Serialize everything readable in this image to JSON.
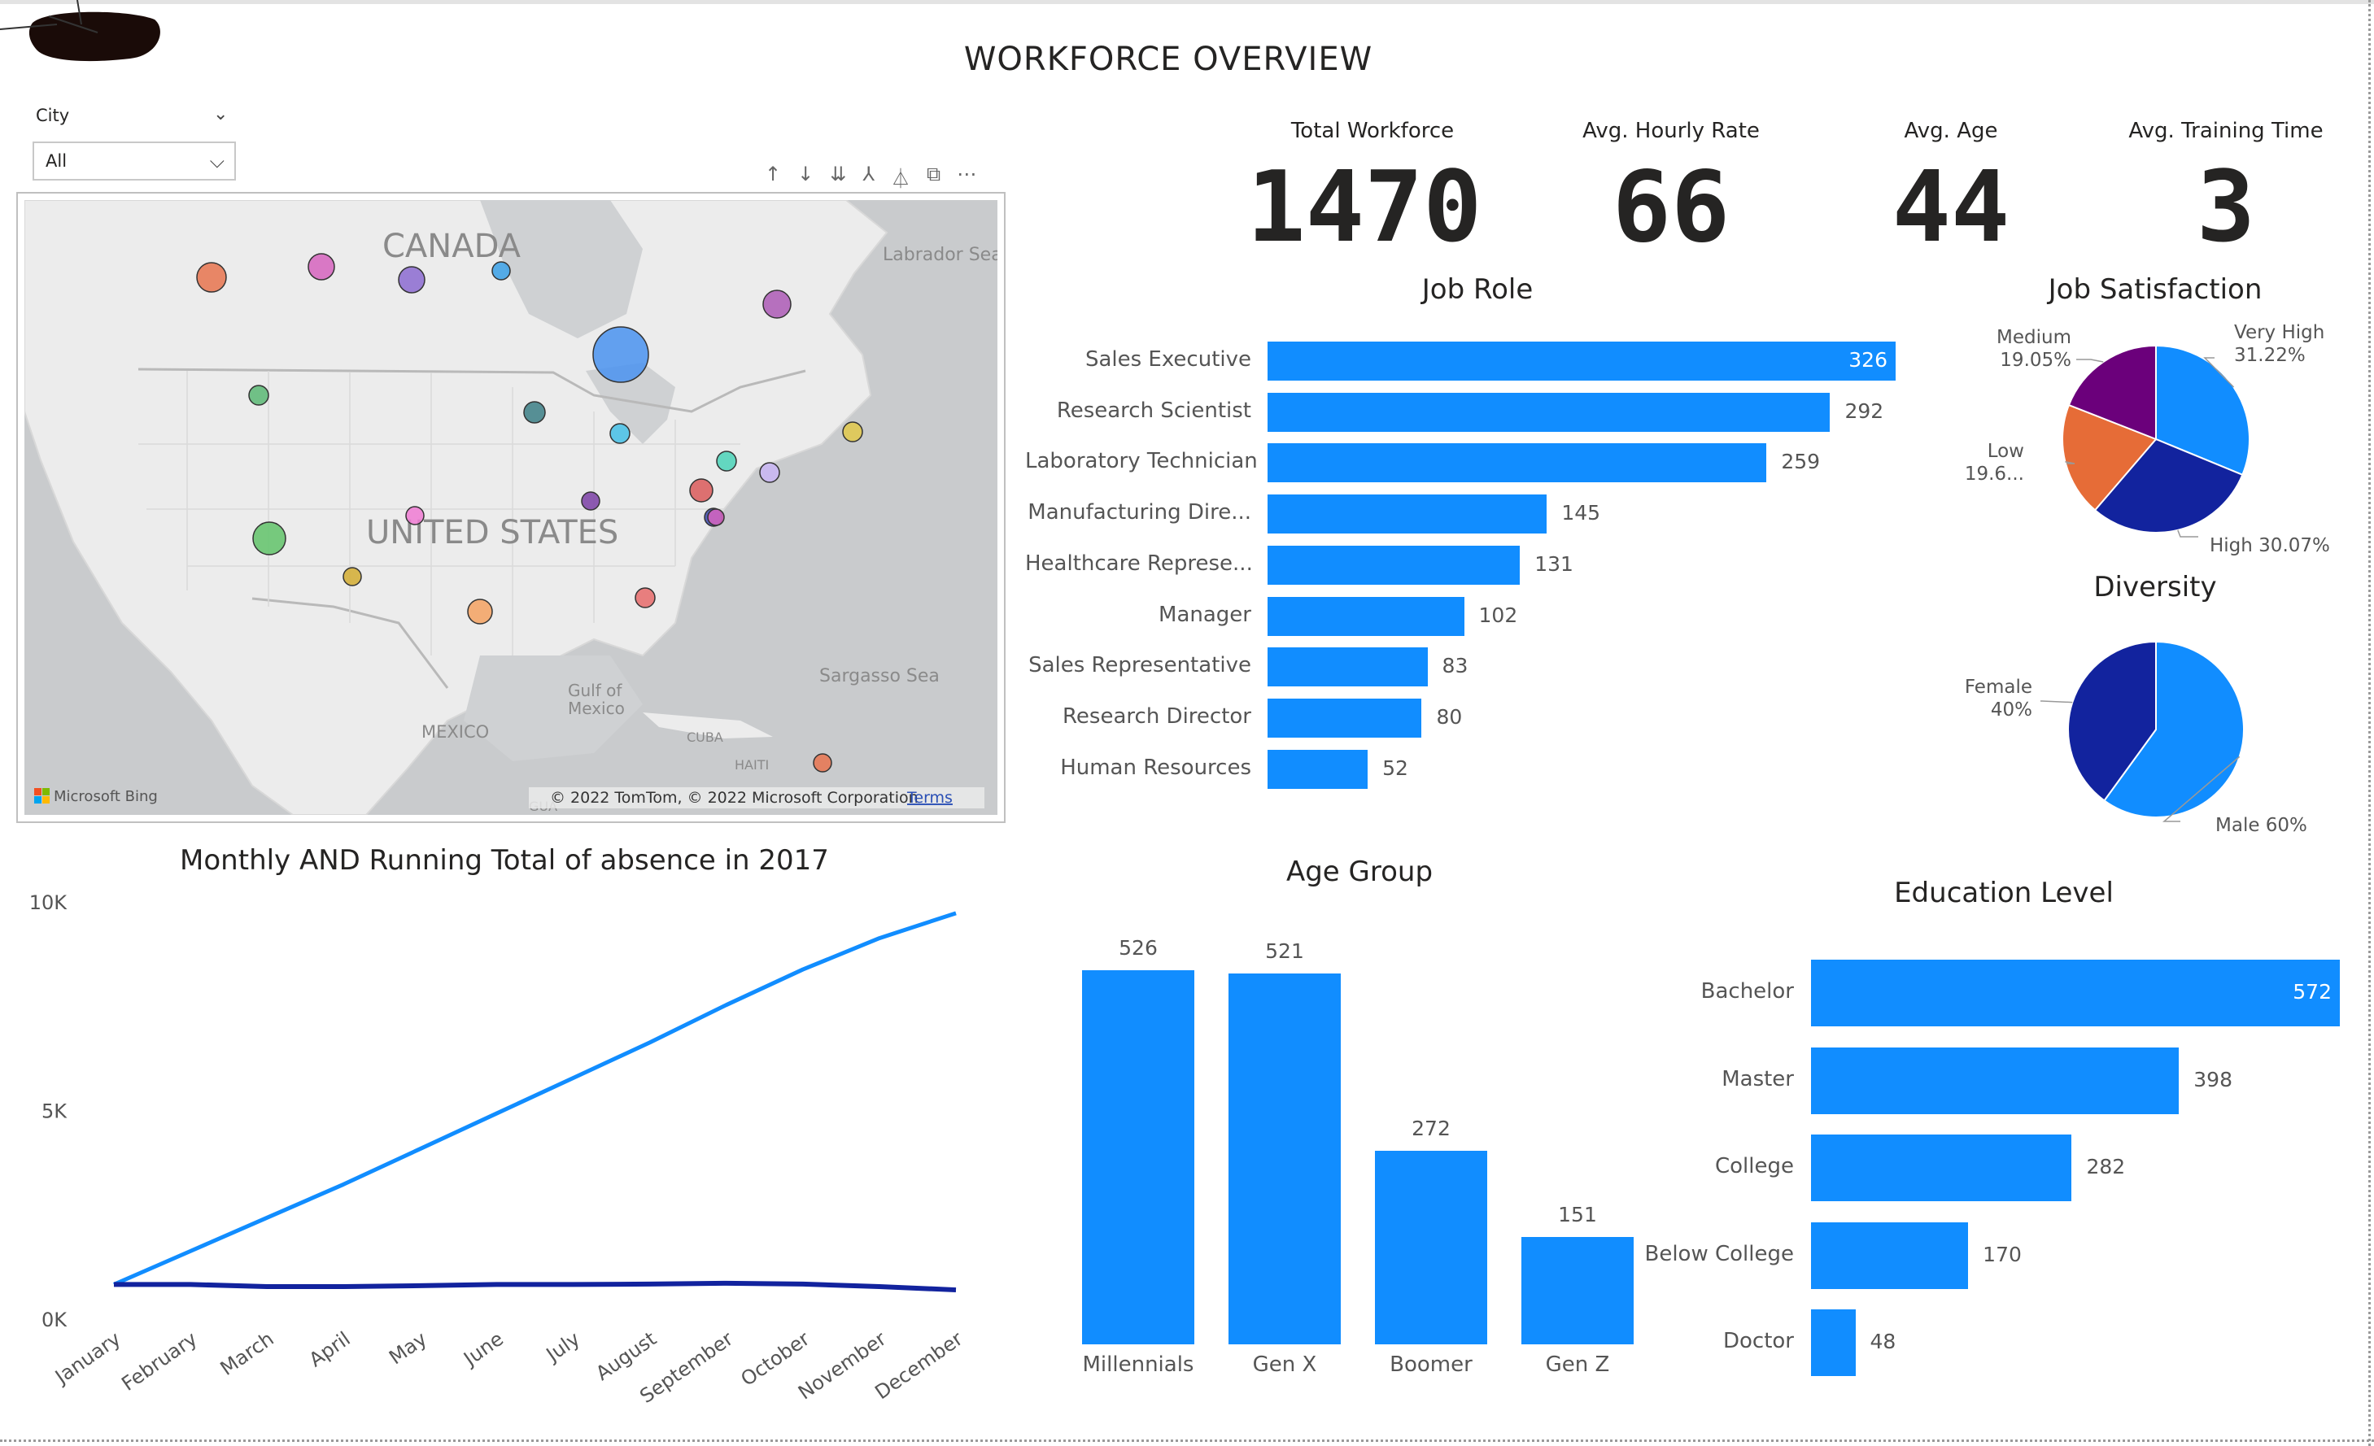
{
  "header": {
    "title": "WORKFORCE OVERVIEW"
  },
  "slicer": {
    "label": "City",
    "value": "All"
  },
  "visual_toolbar": [
    "↑",
    "↓",
    "⇊",
    "⅄",
    "⏃",
    "⧉",
    "⋯"
  ],
  "map": {
    "labels": {
      "canada": "CANADA",
      "labrador": "Labrador Sea",
      "usa": "UNITED STATES",
      "gulf": "Gulf of\nMexico",
      "mexico": "MEXICO",
      "sargasso": "Sargasso Sea",
      "cuba": "CUBA",
      "haiti": "HAITI",
      "gua": "GUA"
    },
    "attribution": "© 2022 TomTom, © 2022 Microsoft Corporation",
    "terms": "Terms",
    "provider": "Microsoft Bing",
    "bubble_colors": [
      "#e8744f",
      "#d664be",
      "#8c6bd1",
      "#3aa0e6",
      "#ad5bb6",
      "#5bb974",
      "#3c7f86",
      "#44c0e6",
      "#e2c94a",
      "#4bd4b8",
      "#c9b6f5",
      "#db5a5a",
      "#7b3fa6",
      "#3c49b0",
      "#f07bd4",
      "#62c36a",
      "#d4ad31",
      "#f4a261",
      "#e86b6b",
      "#4a93f0"
    ]
  },
  "kpis": [
    {
      "label": "Total Workforce",
      "value": "1470"
    },
    {
      "label": "Avg. Hourly Rate",
      "value": "66"
    },
    {
      "label": "Avg. Age",
      "value": "44"
    },
    {
      "label": "Avg. Training Time",
      "value": "3"
    }
  ],
  "chart_data": [
    {
      "id": "job_role",
      "type": "bar",
      "orientation": "horizontal",
      "title": "Job Role",
      "categories": [
        "Sales Executive",
        "Research Scientist",
        "Laboratory Technician",
        "Manufacturing Dire...",
        "Healthcare Represe...",
        "Manager",
        "Sales Representative",
        "Research Director",
        "Human Resources"
      ],
      "values": [
        326,
        292,
        259,
        145,
        131,
        102,
        83,
        80,
        52
      ],
      "color": "#118dff"
    },
    {
      "id": "job_satisfaction",
      "type": "pie",
      "title": "Job Satisfaction",
      "slices": [
        {
          "label": "Very High",
          "pct_label": "31.22%",
          "value": 31.22,
          "color": "#118dff"
        },
        {
          "label": "High",
          "pct_label": "30.07%",
          "value": 30.07,
          "color": "#12239e"
        },
        {
          "label": "Low",
          "pct_label": "19.6...",
          "value": 19.66,
          "color": "#e66c37"
        },
        {
          "label": "Medium",
          "pct_label": "19.05%",
          "value": 19.05,
          "color": "#6b007b"
        }
      ]
    },
    {
      "id": "diversity",
      "type": "pie",
      "title": "Diversity",
      "slices": [
        {
          "label": "Male",
          "pct_label": "60%",
          "value": 60,
          "color": "#118dff"
        },
        {
          "label": "Female",
          "pct_label": "40%",
          "value": 40,
          "color": "#12239e"
        }
      ]
    },
    {
      "id": "absence",
      "type": "line",
      "title": "Monthly AND Running Total of absence in 2017",
      "x": [
        "January",
        "February",
        "March",
        "April",
        "May",
        "June",
        "July",
        "August",
        "September",
        "October",
        "November",
        "December"
      ],
      "y_ticks": [
        "0K",
        "5K",
        "10K"
      ],
      "ylim": [
        0,
        10000
      ],
      "series": [
        {
          "values": [
            850,
            1650,
            2450,
            3250,
            4100,
            4950,
            5800,
            6650,
            7550,
            8400,
            9150,
            9750
          ],
          "color": "#118dff"
        },
        {
          "values": [
            850,
            850,
            800,
            800,
            820,
            850,
            850,
            860,
            880,
            860,
            800,
            720
          ],
          "color": "#12239e"
        }
      ]
    },
    {
      "id": "age_group",
      "type": "bar",
      "orientation": "vertical",
      "title": "Age Group",
      "categories": [
        "Millennials",
        "Gen X",
        "Boomer",
        "Gen Z"
      ],
      "values": [
        526,
        521,
        272,
        151
      ],
      "color": "#118dff"
    },
    {
      "id": "education",
      "type": "bar",
      "orientation": "horizontal",
      "title": "Education Level",
      "categories": [
        "Bachelor",
        "Master",
        "College",
        "Below College",
        "Doctor"
      ],
      "values": [
        572,
        398,
        282,
        170,
        48
      ],
      "color": "#118dff"
    }
  ]
}
